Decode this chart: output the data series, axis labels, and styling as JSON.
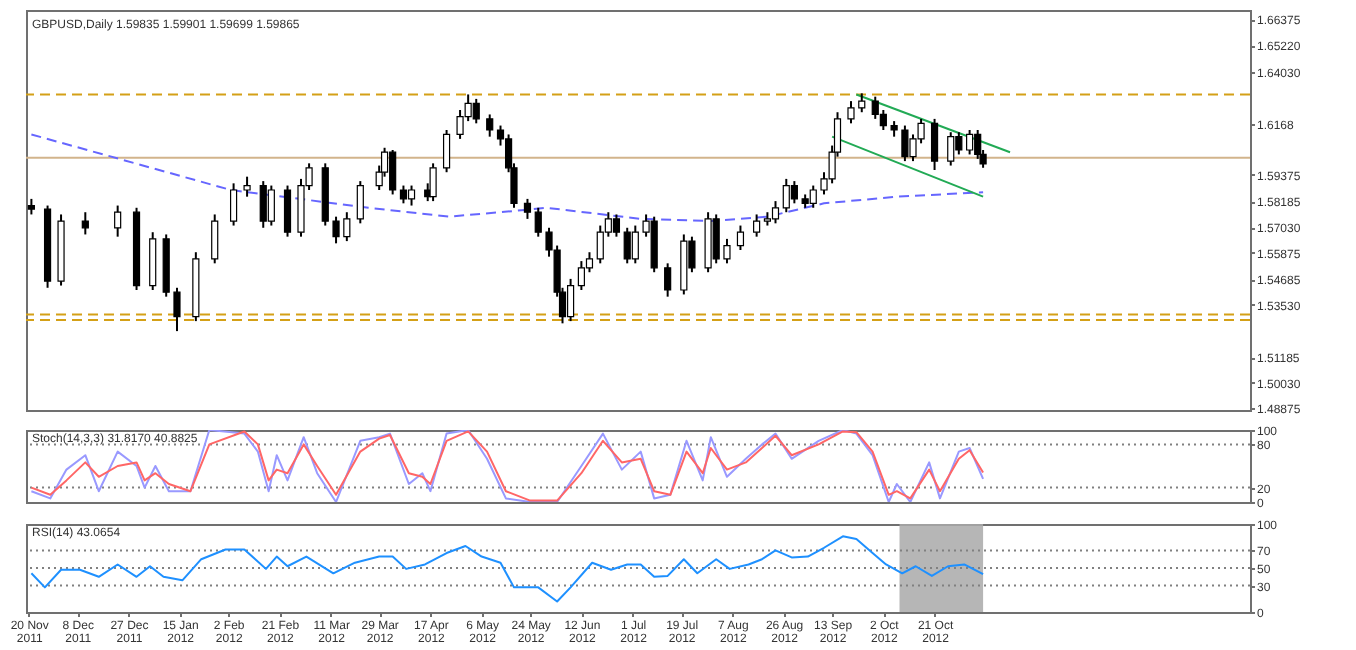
{
  "chart_data": [
    {
      "type": "candlestick",
      "title": "GBPUSD,Daily  1.59835 1.59901 1.59699 1.59865",
      "tick_labels": "y",
      "xlim": [
        "2011-11-19",
        "2013-02-15"
      ],
      "ylim": [
        1.488,
        1.668
      ],
      "yticks": [
        1.66375,
        {
          "value": 1.6522,
          "label": "1.65220"
        },
        {
          "value": 1.6403,
          "label": "1.64030"
        },
        1.6168,
        1.59375,
        1.58185,
        {
          "value": 1.5703,
          "label": "1.57030"
        },
        1.55875,
        1.54685,
        {
          "value": 1.5353,
          "label": "1.53530"
        },
        1.51185,
        {
          "value": 1.5003,
          "label": "1.50030"
        },
        1.48875
      ],
      "x": [
        "2011-11-21",
        "2011-11-27",
        "2011-12-02",
        "2011-12-11",
        "2011-12-23",
        "2011-12-30",
        "2012-01-05",
        "2012-01-10",
        "2012-01-14",
        "2012-01-21",
        "2012-01-28",
        "2012-02-04",
        "2012-02-09",
        "2012-02-15",
        "2012-02-18",
        "2012-02-24",
        "2012-02-29",
        "2012-03-03",
        "2012-03-09",
        "2012-03-13",
        "2012-03-17",
        "2012-03-22",
        "2012-03-29",
        "2012-03-31",
        "2012-04-03",
        "2012-04-07",
        "2012-04-10",
        "2012-04-16",
        "2012-04-18",
        "2012-04-23",
        "2012-04-28",
        "2012-05-01",
        "2012-05-04",
        "2012-05-09",
        "2012-05-13",
        "2012-05-16",
        "2012-05-18",
        "2012-05-23",
        "2012-05-27",
        "2012-05-31",
        "2012-06-03",
        "2012-06-05",
        "2012-06-08",
        "2012-06-12",
        "2012-06-15",
        "2012-06-19",
        "2012-06-22",
        "2012-06-25",
        "2012-06-29",
        "2012-07-02",
        "2012-07-06",
        "2012-07-09",
        "2012-07-14",
        "2012-07-20",
        "2012-07-23",
        "2012-07-29",
        "2012-08-01",
        "2012-08-05",
        "2012-08-10",
        "2012-08-16",
        "2012-08-20",
        "2012-08-23",
        "2012-08-27",
        "2012-08-30",
        "2012-09-03",
        "2012-09-06",
        "2012-09-10",
        "2012-09-13",
        "2012-09-15",
        "2012-09-20",
        "2012-09-24",
        "2012-09-29",
        "2012-10-02",
        "2012-10-06",
        "2012-10-10",
        "2012-10-13",
        "2012-10-16",
        "2012-10-21",
        "2012-10-27",
        "2012-10-30",
        "2012-11-03",
        "2012-11-06",
        "2012-11-08"
      ],
      "ohlc": [
        [
          1.58,
          1.583,
          1.576,
          1.5784
        ],
        [
          1.5784,
          1.58,
          1.543,
          1.546
        ],
        [
          1.546,
          1.576,
          1.544,
          1.573
        ],
        [
          1.573,
          1.577,
          1.567,
          1.57
        ],
        [
          1.57,
          1.58,
          1.566,
          1.577
        ],
        [
          1.577,
          1.579,
          1.542,
          1.544
        ],
        [
          1.544,
          1.568,
          1.542,
          1.565
        ],
        [
          1.565,
          1.567,
          1.539,
          1.541
        ],
        [
          1.541,
          1.543,
          1.5235,
          1.53
        ],
        [
          1.53,
          1.559,
          1.528,
          1.556
        ],
        [
          1.556,
          1.576,
          1.554,
          1.573
        ],
        [
          1.573,
          1.59,
          1.571,
          1.587
        ],
        [
          1.587,
          1.593,
          1.584,
          1.589
        ],
        [
          1.589,
          1.591,
          1.57,
          1.573
        ],
        [
          1.573,
          1.589,
          1.571,
          1.587
        ],
        [
          1.587,
          1.589,
          1.566,
          1.568
        ],
        [
          1.568,
          1.592,
          1.566,
          1.589
        ],
        [
          1.589,
          1.599,
          1.587,
          1.597
        ],
        [
          1.597,
          1.599,
          1.571,
          1.573
        ],
        [
          1.573,
          1.575,
          1.563,
          1.566
        ],
        [
          1.566,
          1.577,
          1.564,
          1.574
        ],
        [
          1.574,
          1.591,
          1.572,
          1.589
        ],
        [
          1.589,
          1.598,
          1.587,
          1.595
        ],
        [
          1.595,
          1.606,
          1.593,
          1.604
        ],
        [
          1.604,
          1.605,
          1.585,
          1.587
        ],
        [
          1.587,
          1.589,
          1.581,
          1.583
        ],
        [
          1.583,
          1.589,
          1.58,
          1.587
        ],
        [
          1.587,
          1.59,
          1.582,
          1.584
        ],
        [
          1.584,
          1.599,
          1.582,
          1.597
        ],
        [
          1.597,
          1.614,
          1.595,
          1.612
        ],
        [
          1.612,
          1.623,
          1.61,
          1.62
        ],
        [
          1.62,
          1.63,
          1.618,
          1.626
        ],
        [
          1.626,
          1.628,
          1.617,
          1.619
        ],
        [
          1.619,
          1.621,
          1.611,
          1.614
        ],
        [
          1.614,
          1.616,
          1.607,
          1.61
        ],
        [
          1.61,
          1.612,
          1.595,
          1.597
        ],
        [
          1.597,
          1.599,
          1.579,
          1.581
        ],
        [
          1.581,
          1.583,
          1.574,
          1.577
        ],
        [
          1.577,
          1.579,
          1.566,
          1.568
        ],
        [
          1.568,
          1.57,
          1.557,
          1.56
        ],
        [
          1.56,
          1.562,
          1.539,
          1.541
        ],
        [
          1.541,
          1.543,
          1.527,
          1.53
        ],
        [
          1.53,
          1.547,
          1.528,
          1.544
        ],
        [
          1.544,
          1.555,
          1.542,
          1.552
        ],
        [
          1.552,
          1.559,
          1.55,
          1.556
        ],
        [
          1.556,
          1.571,
          1.554,
          1.568
        ],
        [
          1.568,
          1.577,
          1.566,
          1.574
        ],
        [
          1.574,
          1.576,
          1.566,
          1.568
        ],
        [
          1.568,
          1.57,
          1.554,
          1.556
        ],
        [
          1.556,
          1.571,
          1.554,
          1.568
        ],
        [
          1.568,
          1.576,
          1.566,
          1.573
        ],
        [
          1.573,
          1.575,
          1.55,
          1.552
        ],
        [
          1.552,
          1.554,
          1.539,
          1.542
        ],
        [
          1.542,
          1.567,
          1.54,
          1.564
        ],
        [
          1.564,
          1.566,
          1.55,
          1.552
        ],
        [
          1.552,
          1.577,
          1.55,
          1.574
        ],
        [
          1.574,
          1.576,
          1.554,
          1.556
        ],
        [
          1.556,
          1.565,
          1.554,
          1.562
        ],
        [
          1.562,
          1.571,
          1.56,
          1.568
        ],
        [
          1.568,
          1.576,
          1.566,
          1.573
        ],
        [
          1.573,
          1.577,
          1.571,
          1.574
        ],
        [
          1.574,
          1.582,
          1.572,
          1.579
        ],
        [
          1.579,
          1.592,
          1.577,
          1.589
        ],
        [
          1.589,
          1.591,
          1.581,
          1.583
        ],
        [
          1.583,
          1.585,
          1.579,
          1.581
        ],
        [
          1.581,
          1.589,
          1.579,
          1.587
        ],
        [
          1.587,
          1.595,
          1.585,
          1.592
        ],
        [
          1.592,
          1.607,
          1.59,
          1.604
        ],
        [
          1.604,
          1.622,
          1.602,
          1.619
        ],
        [
          1.619,
          1.627,
          1.617,
          1.624
        ],
        [
          1.624,
          1.6305,
          1.622,
          1.627
        ],
        [
          1.627,
          1.629,
          1.619,
          1.621
        ],
        [
          1.621,
          1.623,
          1.614,
          1.616
        ],
        [
          1.616,
          1.618,
          1.611,
          1.614
        ],
        [
          1.614,
          1.616,
          1.6,
          1.602
        ],
        [
          1.602,
          1.612,
          1.6,
          1.61
        ],
        [
          1.61,
          1.619,
          1.608,
          1.617
        ],
        [
          1.617,
          1.619,
          1.596,
          1.6
        ],
        [
          1.6,
          1.613,
          1.598,
          1.611
        ],
        [
          1.611,
          1.613,
          1.603,
          1.605
        ],
        [
          1.605,
          1.614,
          1.603,
          1.612
        ],
        [
          1.612,
          1.614,
          1.601,
          1.603
        ],
        [
          1.603,
          1.605,
          1.597,
          1.5987
        ]
      ],
      "series": [
        {
          "type": "line",
          "color": "#6666ff",
          "line_style": "dashed",
          "x": [
            "2011-11-21",
            "2012-02-03",
            "2012-03-25",
            "2012-04-24",
            "2012-05-22",
            "2012-05-30",
            "2012-07-04",
            "2012-07-30",
            "2012-08-20",
            "2012-09-10",
            "2012-10-07",
            "2012-11-08"
          ],
          "values": [
            1.612,
            1.587,
            1.579,
            1.575,
            1.578,
            1.579,
            1.574,
            1.573,
            1.575,
            1.581,
            1.584,
            1.586
          ]
        },
        {
          "type": "line",
          "color": "#22aa55",
          "x": [
            "2012-09-22",
            "2012-11-18"
          ],
          "values": [
            1.63,
            1.604
          ]
        },
        {
          "type": "line",
          "color": "#22aa55",
          "x": [
            "2012-09-13",
            "2012-11-08"
          ],
          "values": [
            1.611,
            1.584
          ]
        }
      ],
      "ref_lines": [
        {
          "axis": "y",
          "value": 1.63,
          "color": "#d4a017",
          "line_style": "dashed"
        },
        {
          "axis": "y",
          "value": 1.6015,
          "color": "#d2b48c",
          "line_style": "solid"
        },
        {
          "axis": "y",
          "value": 1.531,
          "color": "#d4a017",
          "line_style": "dashed"
        },
        {
          "axis": "y",
          "value": 1.5285,
          "color": "#d4a017",
          "line_style": "dashed"
        }
      ]
    },
    {
      "type": "line",
      "title": "Stoch(14,3,3) 31.8170 40.8825",
      "tick_labels": "y",
      "xlim": [
        "2011-11-19",
        "2013-02-15"
      ],
      "ylim": [
        0,
        100
      ],
      "yticks": [
        100,
        80,
        20,
        0
      ],
      "series": [
        {
          "color": "#9999ff",
          "x": [
            "2011-11-21",
            "2011-11-28",
            "2011-12-04",
            "2011-12-11",
            "2011-12-16",
            "2011-12-23",
            "2011-12-30",
            "2012-01-02",
            "2012-01-06",
            "2012-01-11",
            "2012-01-19",
            "2012-01-26",
            "2012-02-08",
            "2012-02-13",
            "2012-02-17",
            "2012-02-20",
            "2012-02-24",
            "2012-03-01",
            "2012-03-06",
            "2012-03-13",
            "2012-03-22",
            "2012-03-29",
            "2012-04-02",
            "2012-04-09",
            "2012-04-14",
            "2012-04-17",
            "2012-04-23",
            "2012-05-01",
            "2012-05-08",
            "2012-05-15",
            "2012-05-24",
            "2012-06-03",
            "2012-06-12",
            "2012-06-20",
            "2012-06-27",
            "2012-07-04",
            "2012-07-09",
            "2012-07-15",
            "2012-07-21",
            "2012-07-27",
            "2012-07-30",
            "2012-08-05",
            "2012-08-12",
            "2012-08-18",
            "2012-08-23",
            "2012-08-29",
            "2012-09-08",
            "2012-09-17",
            "2012-09-22",
            "2012-09-28",
            "2012-10-04",
            "2012-10-07",
            "2012-10-12",
            "2012-10-19",
            "2012-10-23",
            "2012-10-30",
            "2012-11-03",
            "2012-11-08"
          ],
          "values": [
            15,
            5,
            45,
            65,
            15,
            70,
            50,
            20,
            50,
            15,
            15,
            100,
            95,
            70,
            15,
            65,
            30,
            90,
            40,
            0,
            85,
            90,
            95,
            25,
            40,
            15,
            95,
            100,
            60,
            5,
            0,
            0,
            50,
            95,
            45,
            70,
            5,
            10,
            85,
            30,
            90,
            35,
            60,
            80,
            95,
            60,
            85,
            100,
            95,
            65,
            0,
            25,
            0,
            55,
            5,
            70,
            75,
            32
          ]
        },
        {
          "color": "#ff6666",
          "x": [
            "2011-11-21",
            "2011-11-28",
            "2011-12-04",
            "2011-12-11",
            "2011-12-16",
            "2011-12-23",
            "2011-12-30",
            "2012-01-02",
            "2012-01-06",
            "2012-01-11",
            "2012-01-19",
            "2012-01-26",
            "2012-02-08",
            "2012-02-13",
            "2012-02-17",
            "2012-02-20",
            "2012-02-24",
            "2012-03-01",
            "2012-03-06",
            "2012-03-13",
            "2012-03-22",
            "2012-03-29",
            "2012-04-02",
            "2012-04-09",
            "2012-04-14",
            "2012-04-17",
            "2012-04-23",
            "2012-05-01",
            "2012-05-08",
            "2012-05-15",
            "2012-05-24",
            "2012-06-03",
            "2012-06-12",
            "2012-06-20",
            "2012-06-27",
            "2012-07-04",
            "2012-07-09",
            "2012-07-15",
            "2012-07-21",
            "2012-07-27",
            "2012-07-30",
            "2012-08-05",
            "2012-08-12",
            "2012-08-18",
            "2012-08-23",
            "2012-08-29",
            "2012-09-08",
            "2012-09-17",
            "2012-09-22",
            "2012-09-28",
            "2012-10-04",
            "2012-10-07",
            "2012-10-12",
            "2012-10-19",
            "2012-10-23",
            "2012-10-30",
            "2012-11-03",
            "2012-11-08"
          ],
          "values": [
            20,
            10,
            30,
            55,
            35,
            50,
            55,
            30,
            40,
            25,
            15,
            80,
            98,
            80,
            30,
            45,
            40,
            80,
            50,
            10,
            70,
            88,
            93,
            40,
            35,
            25,
            85,
            98,
            70,
            15,
            2,
            2,
            40,
            85,
            55,
            60,
            15,
            10,
            70,
            40,
            75,
            45,
            55,
            75,
            92,
            65,
            80,
            98,
            97,
            70,
            10,
            15,
            5,
            45,
            15,
            60,
            72,
            41
          ]
        }
      ],
      "ref_lines": [
        {
          "axis": "y",
          "value": 80,
          "color": "#808080",
          "line_style": "dotted"
        },
        {
          "axis": "y",
          "value": 20,
          "color": "#808080",
          "line_style": "dotted"
        }
      ]
    },
    {
      "type": "line",
      "title": "RSI(14) 43.0654",
      "xlim": [
        "2011-11-19",
        "2013-02-15"
      ],
      "ylim": [
        0,
        100
      ],
      "yticks": [
        100,
        70,
        50,
        30,
        0
      ],
      "xticks": [
        {
          "value": "2011-11-20",
          "label": "20 Nov 2011"
        },
        {
          "value": "2011-12-08",
          "label": "8 Dec 2011"
        },
        {
          "value": "2011-12-27",
          "label": "27 Dec 2011"
        },
        {
          "value": "2012-01-15",
          "label": "15 Jan 2012"
        },
        {
          "value": "2012-02-02",
          "label": "2 Feb 2012"
        },
        {
          "value": "2012-02-21",
          "label": "21 Feb 2012"
        },
        {
          "value": "2012-03-11",
          "label": "11 Mar 2012"
        },
        {
          "value": "2012-03-29",
          "label": "29 Mar 2012"
        },
        {
          "value": "2012-04-17",
          "label": "17 Apr 2012"
        },
        {
          "value": "2012-05-06",
          "label": "6 May 2012"
        },
        {
          "value": "2012-05-24",
          "label": "24 May 2012"
        },
        {
          "value": "2012-06-12",
          "label": "12 Jun 2012"
        },
        {
          "value": "2012-07-01",
          "label": "1 Jul 2012"
        },
        {
          "value": "2012-07-19",
          "label": "19 Jul 2012"
        },
        {
          "value": "2012-08-07",
          "label": "7 Aug 2012"
        },
        {
          "value": "2012-08-26",
          "label": "26 Aug 2012"
        },
        {
          "value": "2012-09-13",
          "label": "13 Sep 2012"
        },
        {
          "value": "2012-10-02",
          "label": "2 Oct 2012"
        },
        {
          "value": "2012-10-21",
          "label": "21 Oct 2012"
        }
      ],
      "series": [
        {
          "color": "#1e90ff",
          "x": [
            "2011-11-21",
            "2011-11-26",
            "2011-12-02",
            "2011-12-09",
            "2011-12-16",
            "2011-12-23",
            "2011-12-30",
            "2012-01-04",
            "2012-01-09",
            "2012-01-16",
            "2012-01-23",
            "2012-02-01",
            "2012-02-08",
            "2012-02-16",
            "2012-02-20",
            "2012-02-24",
            "2012-03-02",
            "2012-03-12",
            "2012-03-20",
            "2012-03-29",
            "2012-04-03",
            "2012-04-08",
            "2012-04-15",
            "2012-04-23",
            "2012-04-30",
            "2012-05-06",
            "2012-05-13",
            "2012-05-18",
            "2012-05-27",
            "2012-06-03",
            "2012-06-08",
            "2012-06-16",
            "2012-06-23",
            "2012-06-29",
            "2012-07-04",
            "2012-07-09",
            "2012-07-14",
            "2012-07-20",
            "2012-07-25",
            "2012-08-01",
            "2012-08-06",
            "2012-08-13",
            "2012-08-18",
            "2012-08-23",
            "2012-08-29",
            "2012-09-04",
            "2012-09-10",
            "2012-09-17",
            "2012-09-22",
            "2012-09-28",
            "2012-10-03",
            "2012-10-09",
            "2012-10-14",
            "2012-10-20",
            "2012-10-26",
            "2012-11-01",
            "2012-11-08"
          ],
          "values": [
            44,
            28,
            48,
            48,
            40,
            54,
            40,
            52,
            40,
            36,
            60,
            71,
            71,
            49,
            63,
            52,
            63,
            44,
            56,
            63,
            63,
            49,
            54,
            67,
            75,
            63,
            56,
            28,
            28,
            12,
            28,
            56,
            48,
            54,
            54,
            40,
            41,
            60,
            44,
            60,
            49,
            54,
            60,
            70,
            62,
            63,
            73,
            86,
            83,
            67,
            54,
            44,
            52,
            41,
            52,
            54,
            43
          ]
        }
      ],
      "ref_lines": [
        {
          "axis": "y",
          "value": 70,
          "color": "#808080",
          "line_style": "dotted"
        },
        {
          "axis": "y",
          "value": 50,
          "color": "#808080",
          "line_style": "dotted"
        },
        {
          "axis": "y",
          "value": 30,
          "color": "#808080",
          "line_style": "dotted"
        }
      ],
      "bands": [
        {
          "axis": "x",
          "from": "2012-10-08",
          "to": "2012-11-08",
          "color": "#a9a9a9"
        }
      ]
    }
  ]
}
